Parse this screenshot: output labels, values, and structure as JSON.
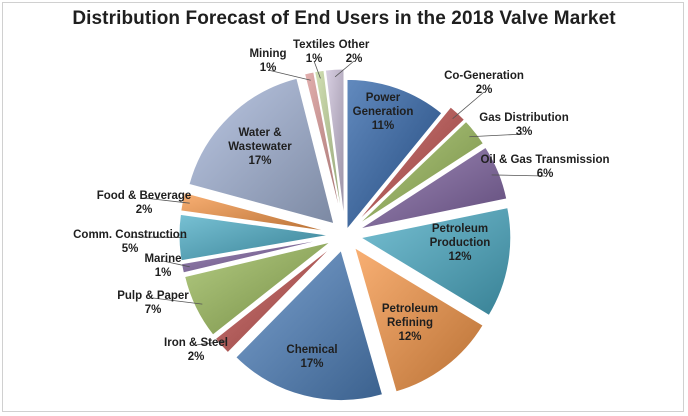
{
  "chart_data": {
    "type": "pie",
    "title": "Distribution Forecast of End Users in the 2018 Valve Market",
    "legend": "none",
    "slices": [
      {
        "name": "Power Generation",
        "label_lines": [
          "Power",
          "Generation",
          "11%"
        ],
        "value": 11,
        "color": "#2e63a8",
        "exploded": false
      },
      {
        "name": "Co-Generation",
        "label_lines": [
          "Co-Generation",
          "2%"
        ],
        "value": 2,
        "color": "#c0504d",
        "exploded": true
      },
      {
        "name": "Gas Distribution",
        "label_lines": [
          "Gas Distribution",
          "3%"
        ],
        "value": 3,
        "color": "#9bbb59",
        "exploded": true
      },
      {
        "name": "Oil & Gas Transmission",
        "label_lines": [
          "Oil & Gas Transmission",
          "6%"
        ],
        "value": 6,
        "color": "#8064a2",
        "exploded": true
      },
      {
        "name": "Petroleum Production",
        "label_lines": [
          "Petroleum",
          "Production",
          "12%"
        ],
        "value": 12,
        "color": "#4bacc6",
        "exploded": true
      },
      {
        "name": "Petroleum Refining",
        "label_lines": [
          "Petroleum",
          "Refining",
          "12%"
        ],
        "value": 12,
        "color": "#f79646",
        "exploded": true
      },
      {
        "name": "Chemical",
        "label_lines": [
          "Chemical",
          "17%"
        ],
        "value": 17,
        "color": "#4f81bd",
        "exploded": true
      },
      {
        "name": "Iron & Steel",
        "label_lines": [
          "Iron & Steel",
          "2%"
        ],
        "value": 2,
        "color": "#c0504d",
        "exploded": true
      },
      {
        "name": "Pulp & Paper",
        "label_lines": [
          "Pulp & Paper",
          "7%"
        ],
        "value": 7,
        "color": "#9bbb59",
        "exploded": true
      },
      {
        "name": "Marine",
        "label_lines": [
          "Marine",
          "1%"
        ],
        "value": 1,
        "color": "#8064a2",
        "exploded": true
      },
      {
        "name": "Comm. Construction",
        "label_lines": [
          "Comm. Construction",
          "5%"
        ],
        "value": 5,
        "color": "#4bacc6",
        "exploded": true
      },
      {
        "name": "Food & Beverage",
        "label_lines": [
          "Food & Beverage",
          "2%"
        ],
        "value": 2,
        "color": "#f79646",
        "exploded": true
      },
      {
        "name": "Water & Wastewater",
        "label_lines": [
          "Water &",
          "Wastewater",
          "17%"
        ],
        "value": 17,
        "color": "#a5b6d9",
        "exploded": true
      },
      {
        "name": "Mining",
        "label_lines": [
          "Mining",
          "1%"
        ],
        "value": 1,
        "color": "#d99694",
        "exploded": true
      },
      {
        "name": "Textiles",
        "label_lines": [
          "Textiles",
          "1%"
        ],
        "value": 1,
        "color": "#c3d69b",
        "exploded": true
      },
      {
        "name": "Other",
        "label_lines": [
          "Other",
          "2%"
        ],
        "value": 2,
        "color": "#ccc0da",
        "exploded": true
      }
    ]
  }
}
